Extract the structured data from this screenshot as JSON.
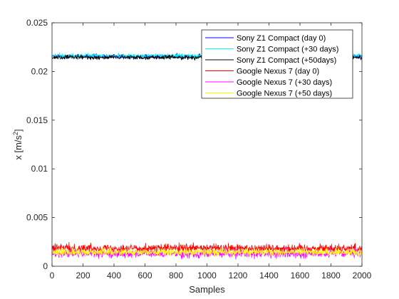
{
  "chart_data": {
    "type": "line",
    "title": "",
    "xlabel": "Samples",
    "ylabel_prefix": "x [m/s",
    "ylabel_sup": "2",
    "ylabel_suffix": "]",
    "xlim": [
      0,
      2000
    ],
    "ylim": [
      0,
      0.025
    ],
    "xticks": [
      0,
      200,
      400,
      600,
      800,
      1000,
      1200,
      1400,
      1600,
      1800,
      2000
    ],
    "xtick_labels": [
      "0",
      "200",
      "400",
      "600",
      "800",
      "1000",
      "1200",
      "1400",
      "1600",
      "1800",
      "2000"
    ],
    "yticks": [
      0,
      0.005,
      0.01,
      0.015,
      0.02,
      0.025
    ],
    "ytick_labels": [
      "0",
      "0.005",
      "0.01",
      "0.015",
      "0.02",
      "0.025"
    ],
    "grid": false,
    "legend_position": "top-right",
    "samples": 2000,
    "series": [
      {
        "name": "Sony Z1 Compact (day 0)",
        "color": "#0000ff",
        "mean": 0.02155,
        "noise": 0.00028
      },
      {
        "name": "Sony Z1 Compact (+30 days)",
        "color": "#00ffff",
        "mean": 0.0216,
        "noise": 0.0003
      },
      {
        "name": "Sony Z1 Compact (+50days)",
        "color": "#000000",
        "mean": 0.02145,
        "noise": 0.00028
      },
      {
        "name": "Google Nexus 7 (day 0)",
        "color": "#ff0000",
        "mean": 0.00185,
        "noise": 0.00055
      },
      {
        "name": "Google Nexus 7 (+30 days)",
        "color": "#ff00ff",
        "mean": 0.0013,
        "noise": 0.00055
      },
      {
        "name": "Google Nexus 7 (+50 days)",
        "color": "#ffff00",
        "mean": 0.00145,
        "noise": 0.00045
      }
    ]
  }
}
